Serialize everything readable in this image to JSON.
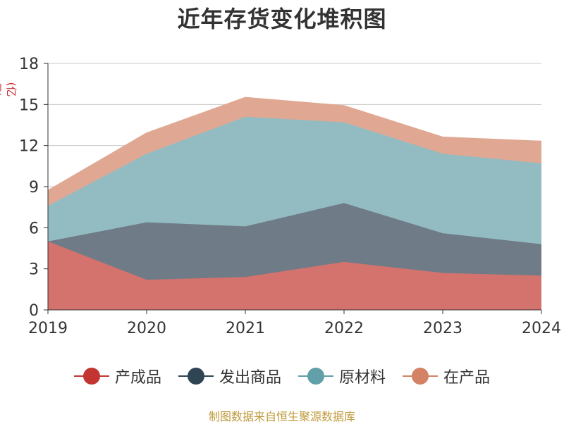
{
  "title": "近年存货变化堆积图",
  "source": "制图数据来自恒生聚源数据库",
  "chart_data": {
    "type": "area",
    "stacked": true,
    "title": "近年存货变化堆积图",
    "ylabel": "(亿元)",
    "xlabel": "",
    "categories": [
      "2019",
      "2020",
      "2021",
      "2022",
      "2023",
      "2024"
    ],
    "ylim": [
      0,
      18
    ],
    "yticks": [
      0,
      3,
      6,
      9,
      12,
      15,
      18
    ],
    "grid": true,
    "legend_position": "bottom",
    "series": [
      {
        "name": "产成品",
        "color": "#c23531",
        "fill": "#d4726e",
        "values": [
          5.0,
          2.2,
          2.4,
          3.5,
          2.7,
          2.5
        ]
      },
      {
        "name": "发出商品",
        "color": "#2f4554",
        "fill": "#6f7c87",
        "values": [
          0.0,
          4.2,
          3.7,
          4.3,
          2.9,
          2.3
        ]
      },
      {
        "name": "原材料",
        "color": "#61a0a8",
        "fill": "#93bcc2",
        "values": [
          2.6,
          5.0,
          8.0,
          5.9,
          5.8,
          5.9
        ]
      },
      {
        "name": "在产品",
        "color": "#d48265",
        "fill": "#e0a893",
        "values": [
          1.1,
          1.5,
          1.4,
          1.2,
          1.2,
          1.6
        ]
      }
    ]
  }
}
